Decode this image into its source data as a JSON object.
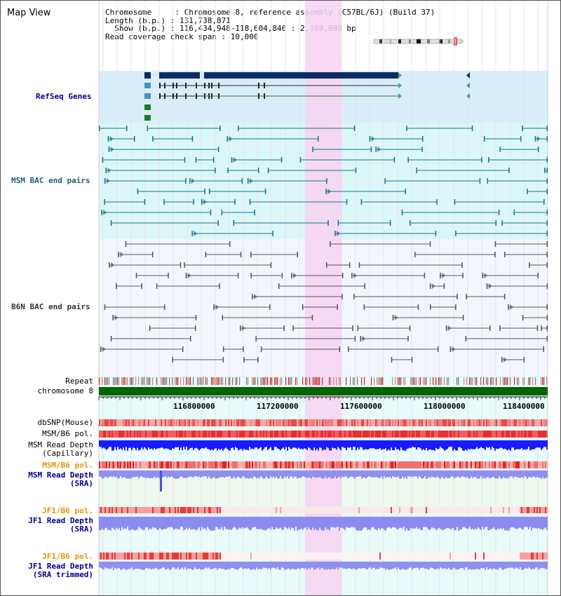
{
  "title": "Map View",
  "info": {
    "line1": "Chromosome     : Chromosome 8, reference assembly (C57BL/6J) (Build 37)",
    "line2": "Length (b.p.) : 131,738,871",
    "line3": "  Show (b.p.) : 116,434,948-118,604,846 : 2,169,899 bp",
    "line4": "Read coverage check span : 10,000"
  },
  "tracks": {
    "refseq": "RefSeq Genes",
    "msm_bac": "MSM BAC end pairs",
    "b6n_bac": "B6N BAC end pairs",
    "repeat": "Repeat",
    "chromosome": "chromosome 8",
    "dbsnp": "dbSNP(Mouse)",
    "msm_b6_pol": "MSM/B6 pol.",
    "msm_read_cap_1": "MSM Read Depth",
    "msm_read_cap_2": "(Capillary)",
    "msm_b6_pol2": "MSM/B6 pol.",
    "msm_read_sra_1": "MSM Read Depth",
    "msm_read_sra_2": "(SRA)",
    "jf1_pol": "JF1/B6 pol.",
    "jf1_read_1": "JF1 Read Depth",
    "jf1_read_2": "(SRA)",
    "jf1_pol2": "JF1/B6 pol.",
    "jf1_trim_1": "JF1 Read Depth",
    "jf1_trim_2": "(SRA trimmed)"
  },
  "axis": {
    "ticks": [
      "116800000",
      "117200000",
      "117600000",
      "118000000",
      "118400000"
    ]
  },
  "colors": {
    "highlight": "#f8d4f2",
    "refseq_bg": "#d8eefa",
    "msm_bg": "#dcf7f7",
    "b6n_bg": "#f4f6ff",
    "chrom_green": "#006400",
    "refseq_dark": "#0d2c66",
    "refseq_green": "#217a21",
    "msm_line": "#19708e",
    "b6n_line": "#555555",
    "depth_blue": "#1a1aff",
    "depth_light": "#8c8cf0"
  }
}
